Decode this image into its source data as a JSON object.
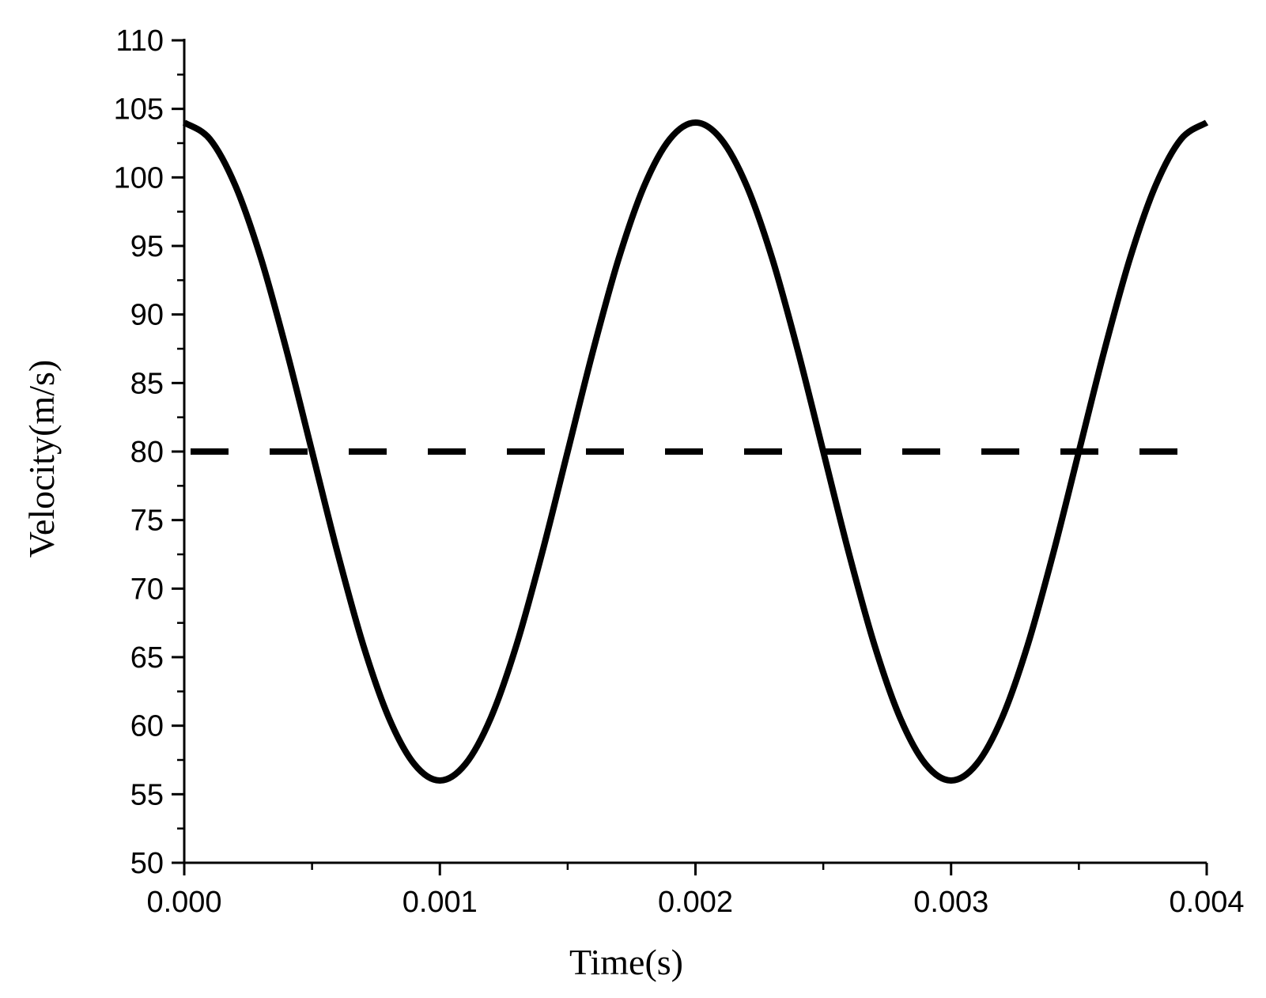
{
  "chart_data": {
    "type": "line",
    "title": "",
    "xlabel": "Time(s)",
    "ylabel": "Velocity(m/s)",
    "xlim": [
      0.0,
      0.004
    ],
    "ylim": [
      50,
      110
    ],
    "xticks": [
      0.0,
      0.001,
      0.002,
      0.003,
      0.004
    ],
    "xtick_labels": [
      "0.000",
      "0.001",
      "0.002",
      "0.003",
      "0.004"
    ],
    "yticks": [
      50,
      55,
      60,
      65,
      70,
      75,
      80,
      85,
      90,
      95,
      100,
      105,
      110
    ],
    "ytick_labels": [
      "50",
      "55",
      "60",
      "65",
      "70",
      "75",
      "80",
      "85",
      "90",
      "95",
      "100",
      "105",
      "110"
    ],
    "grid": false,
    "legend": "none",
    "series": [
      {
        "style": "solid",
        "color": "#000000",
        "x": [
          0.0,
          0.0001,
          0.0002,
          0.0003,
          0.0004,
          0.0005,
          0.0006,
          0.0007,
          0.0008,
          0.0009,
          0.001,
          0.0011,
          0.0012,
          0.0013,
          0.0014,
          0.0015,
          0.0016,
          0.0017,
          0.0018,
          0.0019,
          0.002,
          0.0021,
          0.0022,
          0.0023,
          0.0024,
          0.0025,
          0.0026,
          0.0027,
          0.0028,
          0.0029,
          0.003,
          0.0031,
          0.0032,
          0.0033,
          0.0034,
          0.0035,
          0.0036,
          0.0037,
          0.0038,
          0.0039,
          0.004
        ],
        "y": [
          104.0,
          102.8,
          99.4,
          94.1,
          87.4,
          80.0,
          72.6,
          65.9,
          60.6,
          57.2,
          56.0,
          57.2,
          60.6,
          65.9,
          72.6,
          80.0,
          87.4,
          94.1,
          99.4,
          102.8,
          104.0,
          102.8,
          99.4,
          94.1,
          87.4,
          80.0,
          72.6,
          65.9,
          60.6,
          57.2,
          56.0,
          57.2,
          60.6,
          65.9,
          72.6,
          80.0,
          87.4,
          94.1,
          99.4,
          102.8,
          104.0
        ]
      },
      {
        "style": "dashed",
        "color": "#000000",
        "x": [
          0.0,
          0.004
        ],
        "y": [
          80,
          80
        ]
      }
    ]
  }
}
